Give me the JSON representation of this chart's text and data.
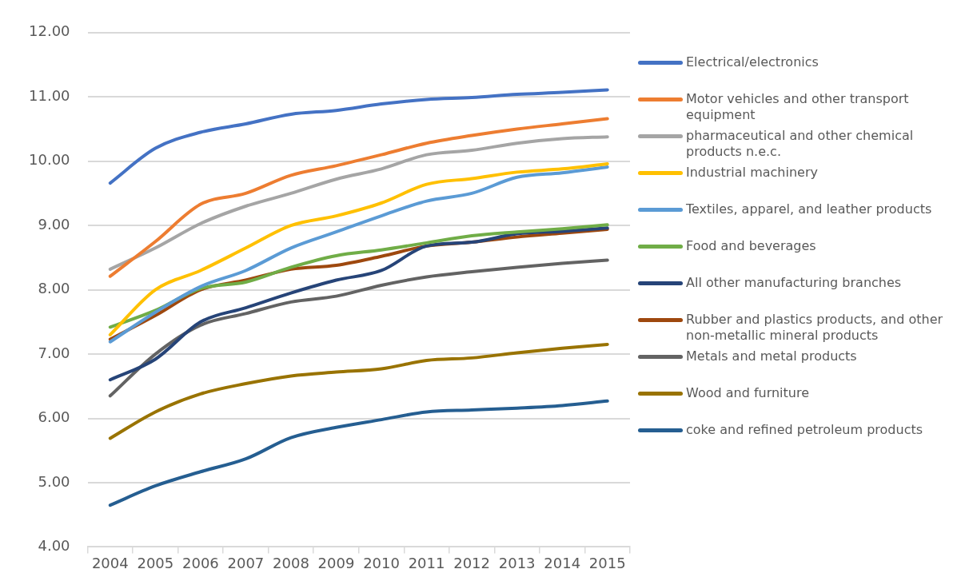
{
  "chart_data": {
    "type": "line",
    "categories": [
      "2004",
      "2005",
      "2006",
      "2007",
      "2008",
      "2009",
      "2010",
      "2011",
      "2012",
      "2013",
      "2014",
      "2015"
    ],
    "ylim": [
      4,
      12
    ],
    "yticks": [
      {
        "value": 4,
        "label": "4.00"
      },
      {
        "value": 5,
        "label": "5.00"
      },
      {
        "value": 6,
        "label": "6.00"
      },
      {
        "value": 7,
        "label": "7.00"
      },
      {
        "value": 8,
        "label": "8.00"
      },
      {
        "value": 9,
        "label": "9.00"
      },
      {
        "value": 10,
        "label": "10.00"
      },
      {
        "value": 11,
        "label": "11.00"
      },
      {
        "value": 12,
        "label": "12.00"
      }
    ],
    "grid": "y",
    "legend": "right",
    "marker": "none",
    "line_style": "solid",
    "series": [
      {
        "name": "Electrical/electronics",
        "color": "#4472c4",
        "values": [
          9.66,
          10.2,
          10.45,
          10.58,
          10.73,
          10.79,
          10.89,
          10.96,
          10.99,
          11.04,
          11.07,
          11.11
        ]
      },
      {
        "name": "Motor vehicles and other transport equipment",
        "color": "#ed7d31",
        "values": [
          8.21,
          8.75,
          9.33,
          9.5,
          9.78,
          9.93,
          10.1,
          10.28,
          10.4,
          10.5,
          10.58,
          10.66
        ]
      },
      {
        "name": "pharmaceutical and other chemical products n.e.c.",
        "color": "#a5a5a5",
        "values": [
          8.32,
          8.65,
          9.03,
          9.3,
          9.5,
          9.72,
          9.88,
          10.1,
          10.17,
          10.28,
          10.35,
          10.38
        ]
      },
      {
        "name": "Industrial machinery",
        "color": "#ffc000",
        "values": [
          7.3,
          8.0,
          8.3,
          8.65,
          9.0,
          9.15,
          9.35,
          9.64,
          9.73,
          9.83,
          9.88,
          9.96
        ]
      },
      {
        "name": "Textiles, apparel, and leather products",
        "color": "#5b9bd5",
        "values": [
          7.19,
          7.65,
          8.05,
          8.3,
          8.65,
          8.9,
          9.15,
          9.38,
          9.5,
          9.75,
          9.82,
          9.91
        ]
      },
      {
        "name": "Food and beverages",
        "color": "#70ad47",
        "values": [
          7.42,
          7.68,
          8.02,
          8.12,
          8.35,
          8.53,
          8.62,
          8.73,
          8.84,
          8.9,
          8.95,
          9.01
        ]
      },
      {
        "name": "All other manufacturing branches",
        "color": "#264478",
        "values": [
          6.6,
          6.92,
          7.5,
          7.72,
          7.95,
          8.15,
          8.3,
          8.68,
          8.74,
          8.87,
          8.91,
          8.96
        ]
      },
      {
        "name": "Rubber and plastics products, and other non-metallic mineral products",
        "color": "#9e480e",
        "values": [
          7.23,
          7.6,
          8.0,
          8.15,
          8.32,
          8.38,
          8.52,
          8.68,
          8.74,
          8.82,
          8.88,
          8.94
        ]
      },
      {
        "name": "Metals and metal products",
        "color": "#636363",
        "values": [
          6.35,
          7.0,
          7.45,
          7.63,
          7.81,
          7.9,
          8.07,
          8.2,
          8.28,
          8.35,
          8.41,
          8.46
        ]
      },
      {
        "name": "Wood and furniture",
        "color": "#997300",
        "values": [
          5.69,
          6.1,
          6.38,
          6.54,
          6.66,
          6.72,
          6.77,
          6.9,
          6.94,
          7.02,
          7.09,
          7.15
        ]
      },
      {
        "name": "coke and refined petroleum products",
        "color": "#255e91",
        "values": [
          4.65,
          4.95,
          5.17,
          5.37,
          5.7,
          5.86,
          5.98,
          6.1,
          6.13,
          6.16,
          6.2,
          6.27
        ]
      }
    ]
  }
}
